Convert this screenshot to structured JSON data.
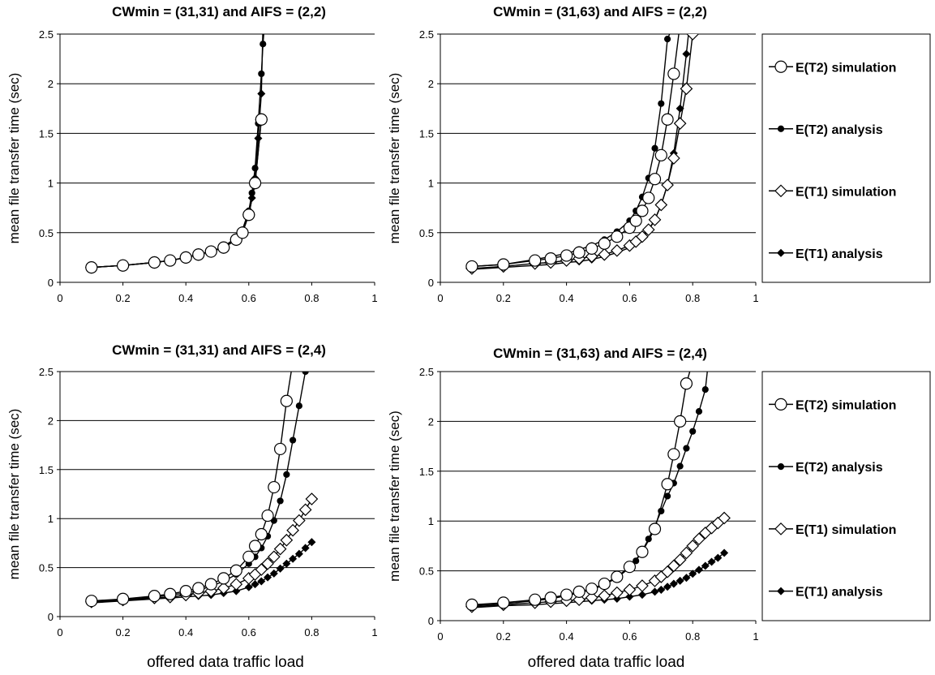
{
  "legend": [
    {
      "name": "E(T2) simulation",
      "marker": "circle-open"
    },
    {
      "name": "E(T2) analysis",
      "marker": "circle-filled"
    },
    {
      "name": "E(T1) simulation",
      "marker": "diamond-open"
    },
    {
      "name": "E(T1) analysis",
      "marker": "diamond-filled"
    }
  ],
  "chart_data": [
    {
      "type": "line",
      "title": "CWmin = (31,31) and AIFS = (2,2)",
      "xlabel": "",
      "ylabel": "mean file transfer time (sec)",
      "xlim": [
        0,
        1
      ],
      "ylim": [
        0,
        2.5
      ],
      "x_ticks": [
        "0",
        "0.2",
        "0.4",
        "0.6",
        "0.8",
        "1"
      ],
      "y_ticks": [
        "0",
        "0.5",
        "1",
        "1.5",
        "2",
        "2.5"
      ],
      "grid": "horizontal",
      "series": [
        {
          "name": "E(T2) simulation",
          "x": [
            0.1,
            0.2,
            0.3,
            0.35,
            0.4,
            0.44,
            0.48,
            0.52,
            0.56,
            0.58,
            0.6,
            0.62,
            0.64
          ],
          "y": [
            0.15,
            0.17,
            0.2,
            0.22,
            0.25,
            0.28,
            0.31,
            0.35,
            0.43,
            0.5,
            0.68,
            1.0,
            1.64
          ]
        },
        {
          "name": "E(T2) analysis",
          "x": [
            0.1,
            0.2,
            0.3,
            0.35,
            0.4,
            0.44,
            0.48,
            0.52,
            0.56,
            0.58,
            0.6,
            0.61,
            0.62,
            0.63,
            0.64,
            0.645,
            0.65
          ],
          "y": [
            0.15,
            0.17,
            0.2,
            0.22,
            0.25,
            0.28,
            0.31,
            0.36,
            0.45,
            0.53,
            0.72,
            0.9,
            1.15,
            1.6,
            2.1,
            2.4,
            2.6
          ]
        },
        {
          "name": "E(T1) simulation",
          "x": [
            0.1,
            0.2,
            0.3,
            0.35,
            0.4,
            0.44,
            0.48,
            0.52,
            0.56,
            0.58,
            0.6,
            0.62,
            0.64
          ],
          "y": [
            0.15,
            0.17,
            0.2,
            0.22,
            0.25,
            0.28,
            0.31,
            0.35,
            0.43,
            0.5,
            0.68,
            1.0,
            1.64
          ]
        },
        {
          "name": "E(T1) analysis",
          "x": [
            0.1,
            0.2,
            0.3,
            0.35,
            0.4,
            0.44,
            0.48,
            0.52,
            0.56,
            0.58,
            0.6,
            0.61,
            0.62,
            0.63,
            0.64,
            0.645
          ],
          "y": [
            0.15,
            0.17,
            0.2,
            0.22,
            0.25,
            0.28,
            0.31,
            0.35,
            0.44,
            0.51,
            0.68,
            0.85,
            1.05,
            1.45,
            1.9,
            2.6
          ]
        }
      ]
    },
    {
      "type": "line",
      "title": "CWmin = (31,63) and AIFS = (2,2)",
      "xlabel": "",
      "ylabel": "mean file transfer time (sec)",
      "xlim": [
        0,
        1
      ],
      "ylim": [
        0,
        2.5
      ],
      "x_ticks": [
        "0",
        "0.2",
        "0.4",
        "0.6",
        "0.8",
        "1"
      ],
      "y_ticks": [
        "0",
        "0.5",
        "1",
        "1.5",
        "2",
        "2.5"
      ],
      "grid": "horizontal",
      "series": [
        {
          "name": "E(T2) simulation",
          "x": [
            0.1,
            0.2,
            0.3,
            0.35,
            0.4,
            0.44,
            0.48,
            0.52,
            0.56,
            0.6,
            0.62,
            0.64,
            0.66,
            0.68,
            0.7,
            0.72,
            0.74,
            0.76
          ],
          "y": [
            0.16,
            0.18,
            0.22,
            0.24,
            0.27,
            0.3,
            0.34,
            0.39,
            0.46,
            0.55,
            0.62,
            0.72,
            0.85,
            1.04,
            1.28,
            1.64,
            2.1,
            2.6
          ]
        },
        {
          "name": "E(T2) analysis",
          "x": [
            0.1,
            0.2,
            0.3,
            0.35,
            0.4,
            0.44,
            0.48,
            0.52,
            0.56,
            0.6,
            0.62,
            0.64,
            0.66,
            0.68,
            0.7,
            0.72,
            0.74
          ],
          "y": [
            0.16,
            0.18,
            0.23,
            0.26,
            0.29,
            0.33,
            0.37,
            0.43,
            0.51,
            0.62,
            0.72,
            0.86,
            1.05,
            1.35,
            1.8,
            2.45,
            2.6
          ]
        },
        {
          "name": "E(T1) simulation",
          "x": [
            0.1,
            0.2,
            0.3,
            0.35,
            0.4,
            0.44,
            0.48,
            0.52,
            0.56,
            0.6,
            0.62,
            0.64,
            0.66,
            0.68,
            0.7,
            0.72,
            0.74,
            0.76,
            0.78,
            0.8
          ],
          "y": [
            0.14,
            0.16,
            0.19,
            0.2,
            0.22,
            0.24,
            0.26,
            0.28,
            0.32,
            0.37,
            0.41,
            0.46,
            0.53,
            0.63,
            0.78,
            0.98,
            1.25,
            1.6,
            1.95,
            2.5
          ]
        },
        {
          "name": "E(T1) analysis",
          "x": [
            0.1,
            0.2,
            0.3,
            0.35,
            0.4,
            0.44,
            0.48,
            0.52,
            0.56,
            0.6,
            0.62,
            0.64,
            0.66,
            0.68,
            0.7,
            0.72,
            0.74,
            0.76,
            0.78,
            0.79
          ],
          "y": [
            0.13,
            0.15,
            0.17,
            0.18,
            0.2,
            0.21,
            0.23,
            0.26,
            0.3,
            0.35,
            0.39,
            0.45,
            0.52,
            0.63,
            0.78,
            0.98,
            1.3,
            1.75,
            2.3,
            2.6
          ]
        }
      ]
    },
    {
      "type": "line",
      "title": "CWmin = (31,31) and AIFS = (2,4)",
      "xlabel": "offered data traffic load",
      "ylabel": "mean file transfer time (sec)",
      "xlim": [
        0,
        1
      ],
      "ylim": [
        0,
        2.5
      ],
      "x_ticks": [
        "0",
        "0.2",
        "0.4",
        "0.6",
        "0.8",
        "1"
      ],
      "y_ticks": [
        "0",
        "0.5",
        "1",
        "1.5",
        "2",
        "2.5"
      ],
      "grid": "horizontal",
      "series": [
        {
          "name": "E(T2) simulation",
          "x": [
            0.1,
            0.2,
            0.3,
            0.35,
            0.4,
            0.44,
            0.48,
            0.52,
            0.56,
            0.6,
            0.62,
            0.64,
            0.66,
            0.68,
            0.7,
            0.72,
            0.74
          ],
          "y": [
            0.16,
            0.18,
            0.21,
            0.23,
            0.26,
            0.29,
            0.33,
            0.39,
            0.47,
            0.61,
            0.72,
            0.84,
            1.03,
            1.32,
            1.71,
            2.2,
            2.6
          ]
        },
        {
          "name": "E(T2) analysis",
          "x": [
            0.1,
            0.2,
            0.3,
            0.35,
            0.4,
            0.44,
            0.48,
            0.52,
            0.56,
            0.6,
            0.62,
            0.64,
            0.66,
            0.68,
            0.7,
            0.72,
            0.74,
            0.76,
            0.78,
            0.8
          ],
          "y": [
            0.15,
            0.17,
            0.2,
            0.22,
            0.24,
            0.27,
            0.31,
            0.36,
            0.43,
            0.54,
            0.61,
            0.7,
            0.82,
            0.98,
            1.18,
            1.45,
            1.8,
            2.15,
            2.5,
            2.6
          ]
        },
        {
          "name": "E(T1) simulation",
          "x": [
            0.1,
            0.2,
            0.3,
            0.35,
            0.4,
            0.44,
            0.48,
            0.52,
            0.56,
            0.6,
            0.62,
            0.64,
            0.66,
            0.68,
            0.7,
            0.72,
            0.74,
            0.76,
            0.78,
            0.8
          ],
          "y": [
            0.15,
            0.17,
            0.19,
            0.2,
            0.22,
            0.24,
            0.26,
            0.29,
            0.33,
            0.39,
            0.43,
            0.48,
            0.54,
            0.61,
            0.69,
            0.78,
            0.88,
            0.98,
            1.09,
            1.2
          ]
        },
        {
          "name": "E(T1) analysis",
          "x": [
            0.1,
            0.2,
            0.3,
            0.35,
            0.4,
            0.44,
            0.48,
            0.52,
            0.56,
            0.6,
            0.62,
            0.64,
            0.66,
            0.68,
            0.7,
            0.72,
            0.74,
            0.76,
            0.78,
            0.8
          ],
          "y": [
            0.14,
            0.16,
            0.18,
            0.19,
            0.2,
            0.21,
            0.22,
            0.24,
            0.26,
            0.3,
            0.33,
            0.36,
            0.4,
            0.44,
            0.49,
            0.54,
            0.59,
            0.64,
            0.7,
            0.76
          ]
        }
      ]
    },
    {
      "type": "line",
      "title": "CWmin = (31,63) and AIFS = (2,4)",
      "xlabel": "offered data traffic load",
      "ylabel": "mean file transfer time (sec)",
      "xlim": [
        0,
        1
      ],
      "ylim": [
        0,
        2.5
      ],
      "x_ticks": [
        "0",
        "0.2",
        "0.4",
        "0.6",
        "0.8",
        "1"
      ],
      "y_ticks": [
        "0",
        "0.5",
        "1",
        "1.5",
        "2",
        "2.5"
      ],
      "grid": "horizontal",
      "series": [
        {
          "name": "E(T2) simulation",
          "x": [
            0.1,
            0.2,
            0.3,
            0.35,
            0.4,
            0.44,
            0.48,
            0.52,
            0.56,
            0.6,
            0.64,
            0.68,
            0.72,
            0.74,
            0.76,
            0.78,
            0.8
          ],
          "y": [
            0.16,
            0.18,
            0.21,
            0.23,
            0.26,
            0.29,
            0.32,
            0.37,
            0.44,
            0.54,
            0.69,
            0.92,
            1.37,
            1.67,
            2.0,
            2.38,
            2.6
          ]
        },
        {
          "name": "E(T2) analysis",
          "x": [
            0.1,
            0.2,
            0.3,
            0.35,
            0.4,
            0.44,
            0.48,
            0.52,
            0.56,
            0.6,
            0.62,
            0.64,
            0.66,
            0.68,
            0.7,
            0.72,
            0.74,
            0.76,
            0.78,
            0.8,
            0.82,
            0.84,
            0.85
          ],
          "y": [
            0.15,
            0.17,
            0.2,
            0.22,
            0.25,
            0.28,
            0.31,
            0.36,
            0.43,
            0.53,
            0.6,
            0.7,
            0.82,
            0.95,
            1.1,
            1.25,
            1.38,
            1.55,
            1.73,
            1.9,
            2.1,
            2.32,
            2.6
          ]
        },
        {
          "name": "E(T1) simulation",
          "x": [
            0.1,
            0.2,
            0.3,
            0.35,
            0.4,
            0.44,
            0.48,
            0.52,
            0.56,
            0.6,
            0.64,
            0.68,
            0.7,
            0.72,
            0.74,
            0.76,
            0.78,
            0.8,
            0.82,
            0.84,
            0.86,
            0.88,
            0.9
          ],
          "y": [
            0.14,
            0.16,
            0.18,
            0.19,
            0.2,
            0.21,
            0.23,
            0.25,
            0.28,
            0.31,
            0.35,
            0.4,
            0.44,
            0.49,
            0.55,
            0.61,
            0.68,
            0.75,
            0.82,
            0.88,
            0.93,
            0.98,
            1.03
          ]
        },
        {
          "name": "E(T1) analysis",
          "x": [
            0.1,
            0.2,
            0.3,
            0.35,
            0.4,
            0.44,
            0.48,
            0.52,
            0.56,
            0.6,
            0.64,
            0.68,
            0.7,
            0.72,
            0.74,
            0.76,
            0.78,
            0.8,
            0.82,
            0.84,
            0.86,
            0.88,
            0.9
          ],
          "y": [
            0.13,
            0.15,
            0.16,
            0.17,
            0.18,
            0.19,
            0.2,
            0.21,
            0.22,
            0.24,
            0.26,
            0.29,
            0.31,
            0.34,
            0.37,
            0.4,
            0.43,
            0.47,
            0.51,
            0.55,
            0.59,
            0.63,
            0.68
          ]
        }
      ]
    }
  ]
}
